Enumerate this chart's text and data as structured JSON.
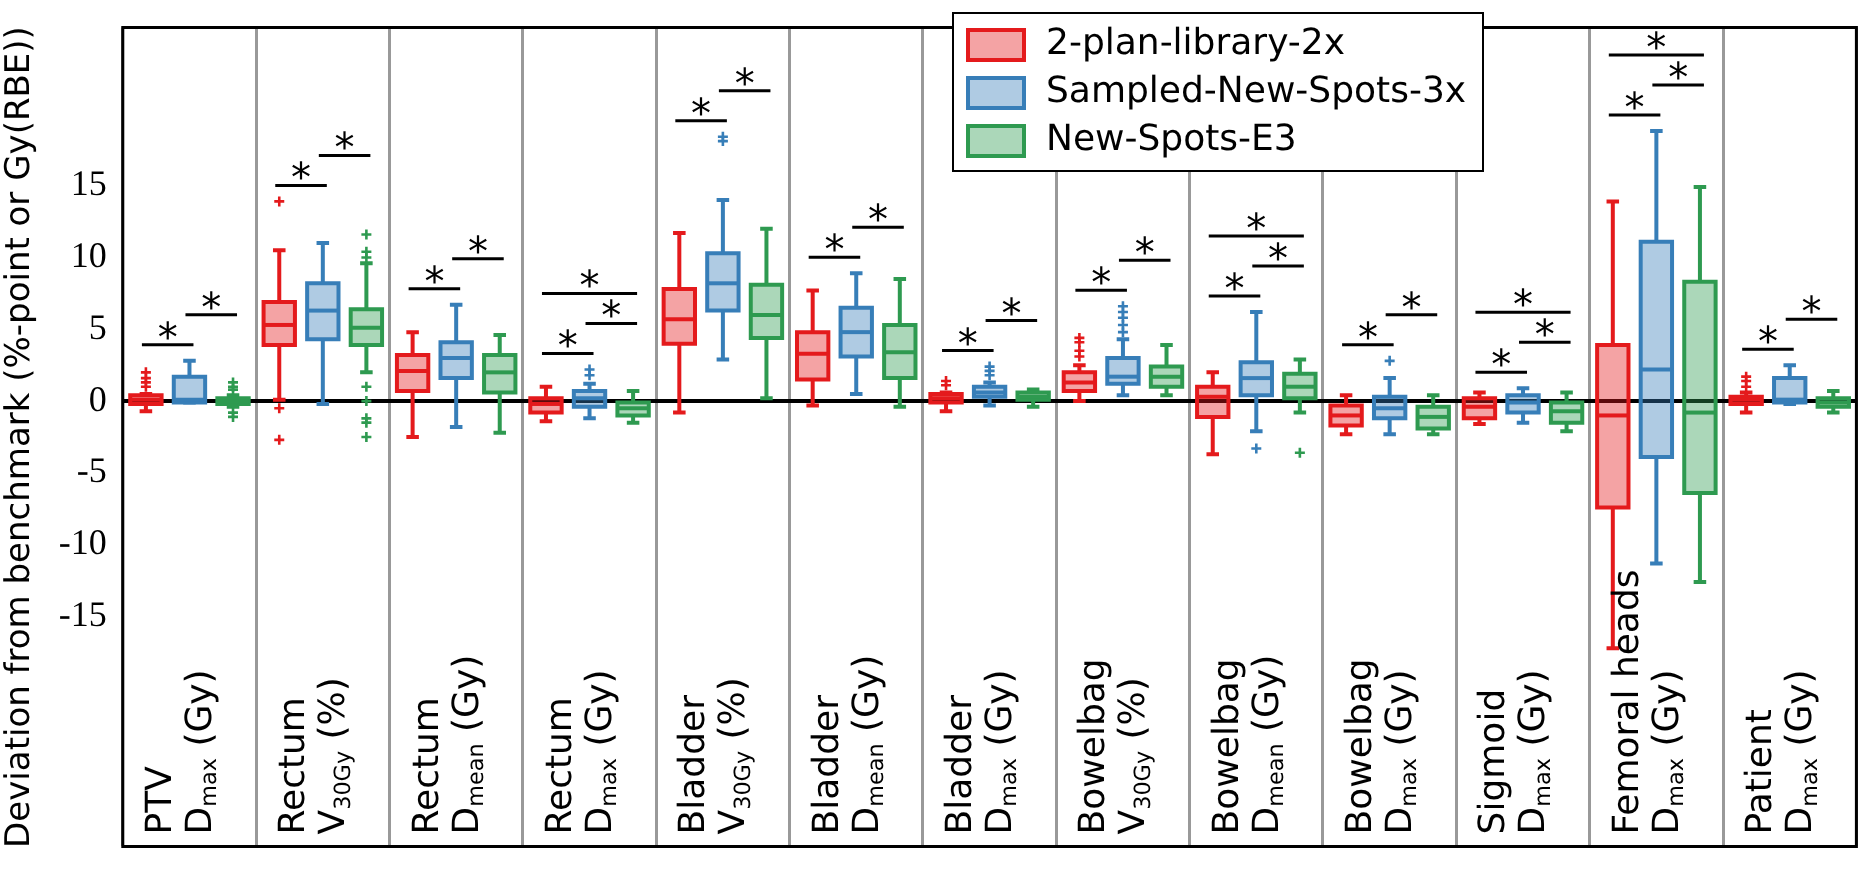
{
  "chart_data": {
    "type": "box",
    "ylabel": "Deviation from benchmark (%-point or Gy(RBE))",
    "categories": [
      "PTV\nD$_{max}$ (Gy)",
      "Rectum\nV$_{30Gy}$ (%)",
      "Rectum\nD$_{mean}$ (Gy)",
      "Rectum\nD$_{max}$ (Gy)",
      "Bladder\nV$_{30Gy}$ (%)",
      "Bladder\nD$_{mean}$ (Gy)",
      "Bladder\nD$_{max}$ (Gy)",
      "Bowelbag\nV$_{30Gy}$ (%)",
      "Bowelbag\nD$_{mean}$ (Gy)",
      "Bowelbag\nD$_{max}$ (Gy)",
      "Sigmoid\nD$_{max}$ (Gy)",
      "Femoral heads\nD$_{max}$ (Gy)",
      "Patient\nD$_{max}$ (Gy)"
    ],
    "ylim": [
      -31,
      26
    ],
    "yticks": [
      -15,
      -10,
      -5,
      0,
      5,
      10,
      15
    ],
    "grid": "x",
    "legend": "top",
    "ref_lines": [
      {
        "axis": "y",
        "value": 0,
        "color": "#000000"
      }
    ],
    "series": [
      {
        "name": "2-plan-library-2x",
        "color": "#e41a1c",
        "boxes": [
          {
            "low": -0.7,
            "q1": -0.2,
            "median": 0.1,
            "q3": 0.4,
            "high": 0.5,
            "outliers": [
              1.0,
              1.3,
              1.6,
              2.0
            ]
          },
          {
            "low": 0.1,
            "q1": 3.9,
            "median": 5.3,
            "q3": 6.9,
            "high": 10.5,
            "outliers": [
              13.9,
              -0.5,
              -2.7
            ]
          },
          {
            "low": -2.5,
            "q1": 0.7,
            "median": 2.1,
            "q3": 3.2,
            "high": 4.8
          },
          {
            "low": -1.4,
            "q1": -0.8,
            "median": -0.2,
            "q3": 0.2,
            "high": 1.0
          },
          {
            "low": -0.8,
            "q1": 4.0,
            "median": 5.7,
            "q3": 7.8,
            "high": 11.7
          },
          {
            "low": -0.3,
            "q1": 1.5,
            "median": 3.3,
            "q3": 4.8,
            "high": 7.7
          },
          {
            "low": -0.7,
            "q1": -0.1,
            "median": 0.2,
            "q3": 0.5,
            "high": 0.6,
            "outliers": [
              1.1,
              1.4
            ]
          },
          {
            "low": 0.0,
            "q1": 0.7,
            "median": 1.3,
            "q3": 2.0,
            "high": 2.5,
            "outliers": [
              3.1,
              3.5,
              4.1,
              4.4
            ]
          },
          {
            "low": -3.7,
            "q1": -1.1,
            "median": 0.3,
            "q3": 1.0,
            "high": 2.0
          },
          {
            "low": -2.3,
            "q1": -1.7,
            "median": -1.0,
            "q3": -0.3,
            "high": 0.4
          },
          {
            "low": -1.6,
            "q1": -1.2,
            "median": -0.4,
            "q3": 0.2,
            "high": 0.6
          },
          {
            "low": -17.2,
            "q1": -7.4,
            "median": -1.0,
            "q3": 3.9,
            "high": 13.9
          },
          {
            "low": -0.8,
            "q1": -0.2,
            "median": 0.1,
            "q3": 0.3,
            "high": 0.6,
            "outliers": [
              1.0,
              1.4,
              1.7
            ]
          }
        ]
      },
      {
        "name": "Sampled-New-Spots-3x",
        "color": "#377eb8",
        "boxes": [
          {
            "low": -0.1,
            "q1": -0.1,
            "median": 0.1,
            "q3": 1.7,
            "high": 2.8
          },
          {
            "low": -0.2,
            "q1": 4.3,
            "median": 6.3,
            "q3": 8.2,
            "high": 11.0
          },
          {
            "low": -1.8,
            "q1": 1.6,
            "median": 3.0,
            "q3": 4.1,
            "high": 6.7
          },
          {
            "low": -1.2,
            "q1": -0.4,
            "median": 0.2,
            "q3": 0.7,
            "high": 1.2,
            "outliers": [
              1.8,
              2.2
            ]
          },
          {
            "low": 2.9,
            "q1": 6.3,
            "median": 8.2,
            "q3": 10.3,
            "high": 14.0,
            "outliers": [
              18.1,
              18.4
            ]
          },
          {
            "low": 0.5,
            "q1": 3.1,
            "median": 4.8,
            "q3": 6.5,
            "high": 8.9
          },
          {
            "low": -0.3,
            "q1": 0.3,
            "median": 0.6,
            "q3": 1.0,
            "high": 1.3,
            "outliers": [
              1.8,
              2.1,
              2.4
            ]
          },
          {
            "low": 0.4,
            "q1": 1.2,
            "median": 1.7,
            "q3": 3.0,
            "high": 4.3,
            "outliers": [
              4.8,
              5.3,
              5.8,
              6.2,
              6.6
            ]
          },
          {
            "low": -2.1,
            "q1": 0.4,
            "median": 1.6,
            "q3": 2.7,
            "high": 6.2,
            "outliers": [
              -3.3
            ]
          },
          {
            "low": -2.3,
            "q1": -1.2,
            "median": -0.5,
            "q3": 0.3,
            "high": 1.6,
            "outliers": [
              2.8
            ]
          },
          {
            "low": -1.5,
            "q1": -0.8,
            "median": -0.1,
            "q3": 0.4,
            "high": 0.9
          },
          {
            "low": -11.3,
            "q1": -3.9,
            "median": 2.2,
            "q3": 11.1,
            "high": 18.8
          },
          {
            "low": -0.2,
            "q1": -0.1,
            "median": 0.1,
            "q3": 1.6,
            "high": 2.5
          }
        ]
      },
      {
        "name": "New-Spots-E3",
        "color": "#2e9a50",
        "boxes": [
          {
            "low": -0.4,
            "q1": -0.2,
            "median": 0.0,
            "q3": 0.2,
            "high": 0.4,
            "outliers": [
              -1.1,
              -0.8,
              0.8,
              1.0,
              1.3
            ]
          },
          {
            "low": 2.0,
            "q1": 3.9,
            "median": 5.1,
            "q3": 6.4,
            "high": 9.6,
            "outliers": [
              10.0,
              10.4,
              11.6,
              1.0,
              0.0,
              -1.2,
              -1.5,
              -2.5
            ]
          },
          {
            "low": -2.2,
            "q1": 0.6,
            "median": 2.0,
            "q3": 3.2,
            "high": 4.6
          },
          {
            "low": -1.5,
            "q1": -1.0,
            "median": -0.5,
            "q3": -0.1,
            "high": 0.7
          },
          {
            "low": 0.2,
            "q1": 4.4,
            "median": 6.0,
            "q3": 8.1,
            "high": 12.0
          },
          {
            "low": -0.4,
            "q1": 1.6,
            "median": 3.4,
            "q3": 5.3,
            "high": 8.5
          },
          {
            "low": -0.4,
            "q1": 0.1,
            "median": 0.3,
            "q3": 0.6,
            "high": 0.8
          },
          {
            "low": 0.4,
            "q1": 1.0,
            "median": 1.7,
            "q3": 2.4,
            "high": 3.9
          },
          {
            "low": -0.8,
            "q1": 0.2,
            "median": 1.0,
            "q3": 1.9,
            "high": 2.9,
            "outliers": [
              -3.6
            ]
          },
          {
            "low": -2.3,
            "q1": -1.9,
            "median": -1.1,
            "q3": -0.4,
            "high": 0.4
          },
          {
            "low": -2.1,
            "q1": -1.5,
            "median": -0.7,
            "q3": -0.1,
            "high": 0.6
          },
          {
            "low": -12.6,
            "q1": -6.4,
            "median": -0.8,
            "q3": 8.3,
            "high": 14.9
          },
          {
            "low": -0.8,
            "q1": -0.4,
            "median": -0.1,
            "q3": 0.2,
            "high": 0.7
          }
        ]
      }
    ],
    "annotations": [
      "*",
      "*",
      "*",
      "*",
      "*",
      "*",
      "*",
      "*",
      "*",
      "*",
      "*",
      "*",
      "*",
      "*",
      "*",
      "*",
      "*",
      "*",
      "*",
      "*",
      "*",
      "*",
      "*",
      "*",
      "*",
      "*",
      "*",
      "*",
      "*",
      "*"
    ]
  }
}
